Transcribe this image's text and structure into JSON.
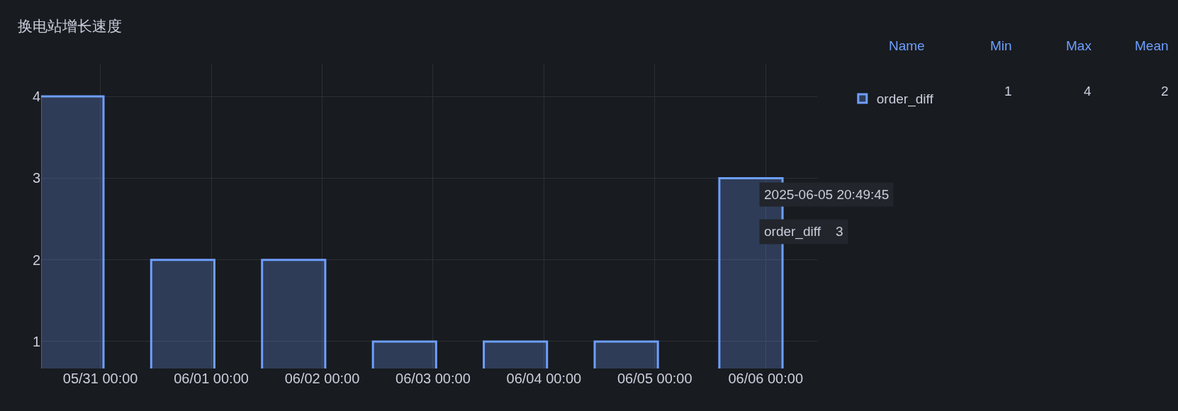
{
  "chart_data": {
    "type": "bar",
    "title": "换电站增长速度",
    "x": [
      "2025-05-30T17:50",
      "2025-05-31T17:50",
      "2025-06-01T17:50",
      "2025-06-02T17:50",
      "2025-06-03T17:50",
      "2025-06-04T17:50",
      "2025-06-05T20:49"
    ],
    "series": [
      {
        "name": "order_diff",
        "color": "#6e9fff",
        "values": [
          4,
          2,
          2,
          1,
          1,
          1,
          3
        ]
      }
    ],
    "xlim": [
      "2025-05-30T11:10",
      "2025-06-06T11:10"
    ],
    "xticks": [
      {
        "value": "2025-05-31",
        "label": "05/31 00:00"
      },
      {
        "value": "2025-06-01",
        "label": "06/01 00:00"
      },
      {
        "value": "2025-06-02",
        "label": "06/02 00:00"
      },
      {
        "value": "2025-06-03",
        "label": "06/03 00:00"
      },
      {
        "value": "2025-06-04",
        "label": "06/04 00:00"
      },
      {
        "value": "2025-06-05",
        "label": "06/05 00:00"
      },
      {
        "value": "2025-06-06",
        "label": "06/06 00:00"
      }
    ],
    "ylim": [
      0.67,
      4.4
    ],
    "yticks": [
      1,
      2,
      3,
      4
    ],
    "grid": true,
    "legend": "top right",
    "annotations": [
      "Name",
      "Min",
      "Max",
      "Mean",
      "1",
      "4",
      "2",
      "2025-06-05 20:49:45",
      "order_diff    3"
    ]
  }
}
